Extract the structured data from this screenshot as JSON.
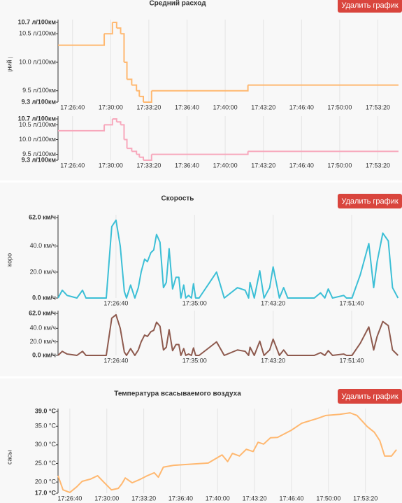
{
  "chart_data": [
    {
      "type": "line",
      "step": true,
      "title": "Средний расход",
      "ylabel": "Средний расход",
      "button": "Удалить график",
      "color": "#ffb870",
      "navigator_color": "#f7a8bc",
      "xlim": [
        "17:25:24",
        "17:55:08"
      ],
      "xticks": [
        "17:26:40",
        "17:30:00",
        "17:33:20",
        "17:36:40",
        "17:40:00",
        "17:43:20",
        "17:46:40",
        "17:50:00",
        "17:53:20"
      ],
      "ylim": [
        9.3,
        10.7
      ],
      "yticks": [
        {
          "value": 10.7,
          "label": "10.7 л/100км"
        },
        {
          "value": 10.5,
          "label": "10.5 л/100км"
        },
        {
          "value": 10.0,
          "label": "10.0 л/100км"
        },
        {
          "value": 9.5,
          "label": "9.5 л/100км"
        },
        {
          "value": 9.3,
          "label": "9.3 л/100км"
        }
      ],
      "x": [
        "17:25:24",
        "17:29:26",
        "17:30:09",
        "17:30:31",
        "17:30:52",
        "17:31:10",
        "17:31:25",
        "17:31:50",
        "17:32:15",
        "17:32:30",
        "17:32:51",
        "17:33:34",
        "17:41:59",
        "17:55:08"
      ],
      "values": [
        10.3,
        10.5,
        10.7,
        10.6,
        10.5,
        10.0,
        9.7,
        9.6,
        9.5,
        9.4,
        9.3,
        9.5,
        9.6,
        9.6
      ]
    },
    {
      "type": "line",
      "title": "Скорость",
      "ylabel": "Скорость",
      "button": "Удалить график",
      "color": "#3cbfd6",
      "navigator_color": "#8e5a4e",
      "xlim": [
        "17:20:31",
        "17:56:38"
      ],
      "xticks": [
        "17:26:40",
        "17:35:00",
        "17:43:20",
        "17:51:40"
      ],
      "ylim": [
        0,
        62
      ],
      "yticks": [
        {
          "value": 62,
          "label": "62.0 км/ч"
        },
        {
          "value": 40,
          "label": "40.0 км/ч"
        },
        {
          "value": 20,
          "label": "20.0 км/ч"
        },
        {
          "value": 0,
          "label": "0.0 км/ч"
        }
      ],
      "x": [
        "17:20:31",
        "17:20:58",
        "17:21:29",
        "17:22:00",
        "17:22:31",
        "17:23:07",
        "17:23:29",
        "17:25:38",
        "17:26:13",
        "17:26:40",
        "17:27:07",
        "17:27:33",
        "17:27:47",
        "17:28:13",
        "17:28:40",
        "17:29:02",
        "17:29:20",
        "17:29:42",
        "17:30:00",
        "17:30:22",
        "17:30:40",
        "17:30:58",
        "17:31:20",
        "17:31:42",
        "17:32:00",
        "17:32:18",
        "17:32:40",
        "17:33:02",
        "17:33:20",
        "17:33:33",
        "17:33:51",
        "17:34:04",
        "17:34:22",
        "17:34:40",
        "17:34:53",
        "17:35:07",
        "17:35:29",
        "17:36:36",
        "17:37:20",
        "17:38:09",
        "17:39:33",
        "17:40:22",
        "17:40:44",
        "17:40:53",
        "17:41:20",
        "17:41:55",
        "17:42:22",
        "17:42:58",
        "17:43:20",
        "17:44:00",
        "17:44:27",
        "17:44:53",
        "17:46:13",
        "17:47:42",
        "17:48:22",
        "17:48:49",
        "17:49:11",
        "17:49:38",
        "17:50:49",
        "17:51:07",
        "17:51:42",
        "17:52:35",
        "17:53:29",
        "17:54:00",
        "17:54:22",
        "17:54:58",
        "17:55:33",
        "17:56:00",
        "17:56:35"
      ],
      "values": [
        0,
        6,
        2,
        1,
        0,
        6,
        0,
        0,
        55,
        60,
        40,
        5,
        0,
        10,
        0,
        8,
        20,
        30,
        28,
        35,
        37,
        49,
        43,
        8,
        12,
        38,
        7,
        16,
        16,
        0,
        10,
        0,
        2,
        0,
        11,
        0,
        0,
        12,
        20,
        0,
        8,
        6,
        0,
        12,
        0,
        21,
        0,
        8,
        24,
        0,
        8,
        0,
        0,
        0,
        4,
        0,
        7,
        0,
        2,
        0,
        0,
        18,
        42,
        8,
        28,
        50,
        44,
        8,
        0
      ]
    },
    {
      "type": "line",
      "title": "Температура всасываемого воздуха",
      "ylabel": "Температура всасываемого воздуха",
      "button": "Удалить график",
      "color": "#ffb870",
      "xlim": [
        "17:25:36",
        "17:56:19"
      ],
      "xticks": [
        "17:26:40",
        "17:30:00",
        "17:33:20",
        "17:36:40",
        "17:40:00",
        "17:43:20",
        "17:46:40",
        "17:50:00",
        "17:53:20"
      ],
      "ylim": [
        17,
        39
      ],
      "yticks": [
        {
          "value": 39,
          "label": "39.0 °C"
        },
        {
          "value": 35,
          "label": "35.0 °C"
        },
        {
          "value": 30,
          "label": "30.0 °C"
        },
        {
          "value": 25,
          "label": "25.0 °C"
        },
        {
          "value": 20,
          "label": "20.0 °C"
        },
        {
          "value": 17,
          "label": "17.0 °C"
        }
      ],
      "x": [
        "17:25:36",
        "17:26:03",
        "17:26:40",
        "17:27:17",
        "17:27:47",
        "17:28:32",
        "17:29:10",
        "17:29:47",
        "17:30:25",
        "17:31:02",
        "17:31:21",
        "17:31:40",
        "17:32:17",
        "17:32:55",
        "17:33:39",
        "17:34:17",
        "17:34:39",
        "17:35:06",
        "17:36:02",
        "17:39:09",
        "17:40:24",
        "17:40:54",
        "17:41:20",
        "17:41:58",
        "17:42:35",
        "17:43:12",
        "17:43:39",
        "17:44:09",
        "17:44:46",
        "17:45:24",
        "17:46:38",
        "17:47:35",
        "17:49:01",
        "17:49:46",
        "17:51:01",
        "17:51:57",
        "17:52:34",
        "17:53:30",
        "17:54:08",
        "17:54:38",
        "17:55:04",
        "17:55:41",
        "17:56:08"
      ],
      "values": [
        21.7,
        17.9,
        17.2,
        18.7,
        20.2,
        20.8,
        21.7,
        19.8,
        17.9,
        18.3,
        19.5,
        21.1,
        19.8,
        20.6,
        21.7,
        22.5,
        21.3,
        24.0,
        24.5,
        25.1,
        27.3,
        25.5,
        27.7,
        27.0,
        28.8,
        28.2,
        30.7,
        30.2,
        31.9,
        32.0,
        33.9,
        35.8,
        37.1,
        37.9,
        38.2,
        38.6,
        37.9,
        34.9,
        33.4,
        31.1,
        27.0,
        27.0,
        28.7
      ]
    }
  ]
}
